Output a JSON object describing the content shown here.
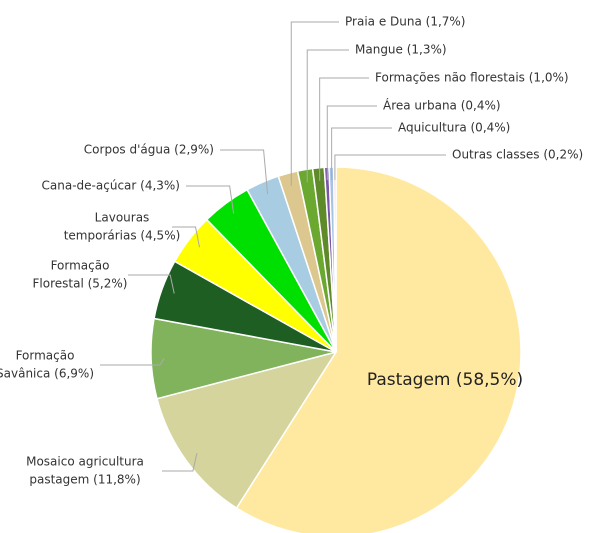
{
  "chart_data": {
    "type": "pie",
    "categories": [
      [
        "Pastagem (58,5%)"
      ],
      [
        "Mosaico agricultura",
        "pastagem (11,8%)"
      ],
      [
        "Formação",
        "Savânica (6,9%)"
      ],
      [
        "Formação",
        "Florestal (5,2%)"
      ],
      [
        "Lavouras",
        "temporárias (4,5%)"
      ],
      [
        "Cana-de-açúcar (4,3%)"
      ],
      [
        "Corpos d'água (2,9%)"
      ],
      [
        "Praia e Duna (1,7%)"
      ],
      [
        "Mangue (1,3%)"
      ],
      [
        "Formações não florestais (1,0%)"
      ],
      [
        "Área urbana (0,4%)"
      ],
      [
        "Aquicultura (0,4%)"
      ],
      [
        "Outras classes (0,2%)"
      ]
    ],
    "values": [
      58.5,
      11.8,
      6.9,
      5.2,
      4.5,
      4.3,
      2.9,
      1.7,
      1.3,
      1.0,
      0.4,
      0.4,
      0.2
    ],
    "colors": [
      "#ffe9a0",
      "#d4d49c",
      "#80b35c",
      "#1f5e22",
      "#ffff00",
      "#00e000",
      "#a8cde2",
      "#dcc88e",
      "#6aa830",
      "#5f8a2a",
      "#7a55a8",
      "#a5c4e4",
      "#f6c4d6"
    ]
  }
}
